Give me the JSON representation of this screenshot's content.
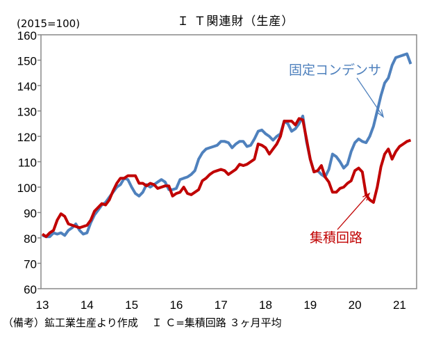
{
  "chart_data": {
    "type": "line",
    "title": "Ｉ Ｔ関連財（生産）",
    "unit_label": "(2015=100)",
    "footnote": "（備考）鉱工業生産より作成　 Ｉ Ｃ=集積回路 ３ヶ月平均",
    "ylim": [
      60,
      160
    ],
    "yticks": [
      "60",
      "70",
      "80",
      "90",
      "100",
      "110",
      "120",
      "130",
      "140",
      "150",
      "160"
    ],
    "xticks": [
      "13",
      "14",
      "15",
      "16",
      "17",
      "18",
      "19",
      "20",
      "21"
    ],
    "grid": false,
    "x_start": "2013-01",
    "x_frequency": "monthly",
    "series": [
      {
        "name": "固定コンデンサ",
        "color": "#4f81bd",
        "values": [
          81,
          80.5,
          80.5,
          82,
          81.5,
          82,
          81,
          83,
          84,
          85.5,
          83,
          81.5,
          82,
          86,
          89,
          91,
          93,
          94,
          96,
          98,
          100,
          101,
          103.5,
          103,
          100,
          97.5,
          96.5,
          98,
          101,
          100,
          101,
          102,
          103,
          102,
          99,
          99,
          99.5,
          103,
          103.5,
          104,
          105,
          106.5,
          111,
          113.5,
          115,
          115.5,
          116,
          116.5,
          118,
          118,
          117.5,
          115.5,
          117,
          118,
          118,
          116,
          116.5,
          119,
          122,
          122.5,
          121,
          120,
          118.5,
          120,
          121,
          126,
          125,
          122,
          123,
          125,
          128,
          118,
          111,
          106,
          106.5,
          105,
          104,
          107,
          113,
          112,
          110,
          107.5,
          109,
          114,
          117.5,
          119,
          118,
          117.5,
          120,
          124,
          130,
          136,
          141,
          143,
          148,
          151,
          151.5,
          152,
          152.5,
          148.5
        ]
      },
      {
        "name": "集積回路",
        "color": "#c00000",
        "values": [
          81.5,
          80.5,
          82,
          83,
          87,
          89.5,
          88.5,
          85.5,
          85,
          84.5,
          84,
          84.5,
          85,
          87,
          90.5,
          92,
          93.5,
          93,
          95,
          98.5,
          101.5,
          103.5,
          103.5,
          104.5,
          104.5,
          104.5,
          101.5,
          101.5,
          100.5,
          101.5,
          101,
          99.5,
          100,
          100.5,
          100.5,
          96.5,
          97.5,
          98,
          100,
          97.5,
          97,
          98,
          99,
          102.5,
          103.5,
          105,
          106,
          106.5,
          107,
          106.5,
          105,
          106,
          107,
          109,
          108.5,
          109,
          110,
          111,
          117,
          116.5,
          115.5,
          113,
          115,
          117,
          120,
          126,
          126,
          126,
          124.5,
          127,
          126.5,
          119,
          111,
          106,
          106.5,
          108.5,
          104,
          102,
          98,
          98,
          99.5,
          100,
          101.5,
          102.5,
          106.5,
          107.5,
          106,
          97,
          95,
          94,
          100,
          108,
          113,
          115,
          111,
          114,
          116,
          117,
          118,
          118.5
        ]
      }
    ]
  }
}
